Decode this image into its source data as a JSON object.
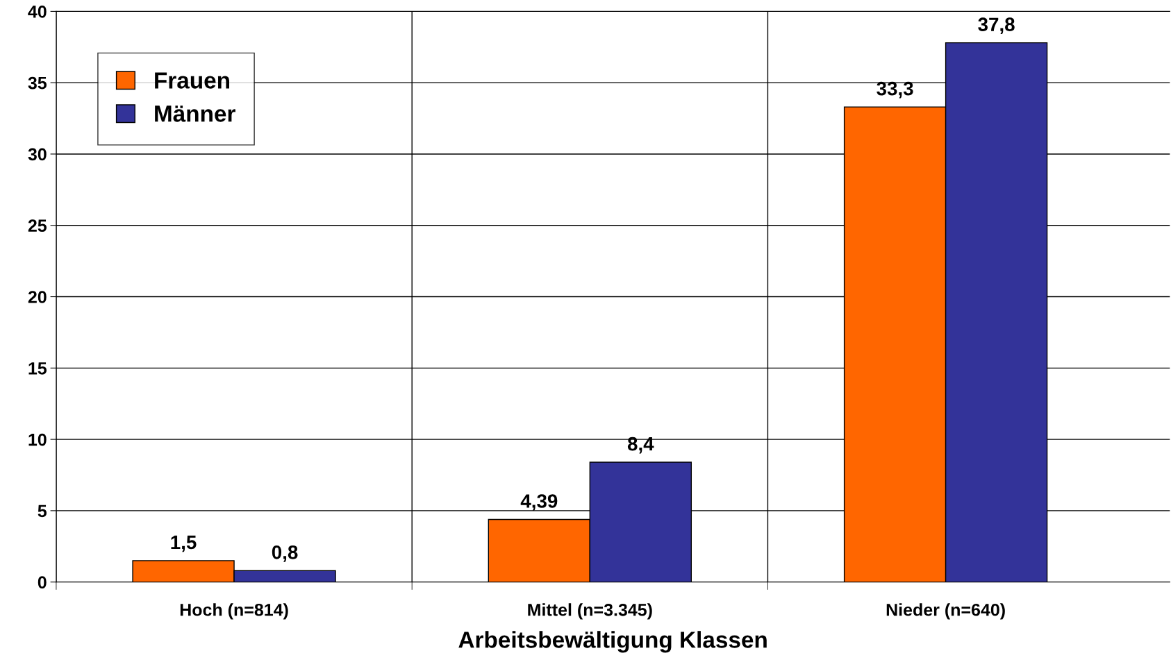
{
  "chart_data": {
    "type": "bar",
    "xlabel": "Arbeitsbewältigung Klassen",
    "categories": [
      "Hoch (n=814)",
      "Mittel (n=3.345)",
      "Nieder (n=640)"
    ],
    "series": [
      {
        "name": "Frauen",
        "color": "#ff6600",
        "values": [
          1.5,
          4.39,
          33.3
        ],
        "value_labels": [
          "1,5",
          "4,39",
          "33,3"
        ]
      },
      {
        "name": "Männer",
        "color": "#333399",
        "values": [
          0.8,
          8.4,
          37.8
        ],
        "value_labels": [
          "0,8",
          "8,4",
          "37,8"
        ]
      }
    ],
    "ylim": [
      0,
      40
    ],
    "yticks": [
      0,
      5,
      10,
      15,
      20,
      25,
      30,
      35,
      40
    ],
    "grid": true,
    "legend": "top left"
  }
}
